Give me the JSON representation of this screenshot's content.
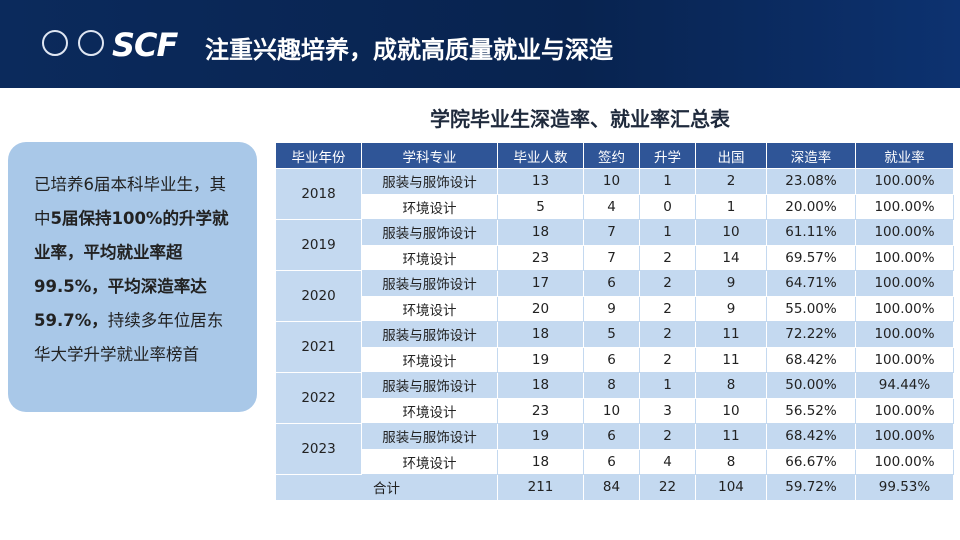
{
  "header": {
    "logo": "SCF",
    "title": "注重兴趣培养，成就高质量就业与深造"
  },
  "summary": [
    {
      "text": "已培养6届本科毕业生，其中",
      "bold": false
    },
    {
      "text": "5届保持100%的升学就业率，平均就业率超99.5%，平均深造率达59.7%，",
      "bold": true
    },
    {
      "text": "持续多年位居东华大学升学就业率榜首",
      "bold": false
    }
  ],
  "table": {
    "title": "学院毕业生深造率、就业率汇总表",
    "headers": [
      "毕业年份",
      "学科专业",
      "毕业人数",
      "签约",
      "升学",
      "出国",
      "深造率",
      "就业率"
    ],
    "groups": [
      {
        "year": "2018",
        "rows": [
          [
            "服装与服饰设计",
            "13",
            "10",
            "1",
            "2",
            "23.08%",
            "100.00%"
          ],
          [
            "环境设计",
            "5",
            "4",
            "0",
            "1",
            "20.00%",
            "100.00%"
          ]
        ]
      },
      {
        "year": "2019",
        "rows": [
          [
            "服装与服饰设计",
            "18",
            "7",
            "1",
            "10",
            "61.11%",
            "100.00%"
          ],
          [
            "环境设计",
            "23",
            "7",
            "2",
            "14",
            "69.57%",
            "100.00%"
          ]
        ]
      },
      {
        "year": "2020",
        "rows": [
          [
            "服装与服饰设计",
            "17",
            "6",
            "2",
            "9",
            "64.71%",
            "100.00%"
          ],
          [
            "环境设计",
            "20",
            "9",
            "2",
            "9",
            "55.00%",
            "100.00%"
          ]
        ]
      },
      {
        "year": "2021",
        "rows": [
          [
            "服装与服饰设计",
            "18",
            "5",
            "2",
            "11",
            "72.22%",
            "100.00%"
          ],
          [
            "环境设计",
            "19",
            "6",
            "2",
            "11",
            "68.42%",
            "100.00%"
          ]
        ]
      },
      {
        "year": "2022",
        "rows": [
          [
            "服装与服饰设计",
            "18",
            "8",
            "1",
            "8",
            "50.00%",
            "94.44%"
          ],
          [
            "环境设计",
            "23",
            "10",
            "3",
            "10",
            "56.52%",
            "100.00%"
          ]
        ]
      },
      {
        "year": "2023",
        "rows": [
          [
            "服装与服饰设计",
            "19",
            "6",
            "2",
            "11",
            "68.42%",
            "100.00%"
          ],
          [
            "环境设计",
            "18",
            "6",
            "4",
            "8",
            "66.67%",
            "100.00%"
          ]
        ]
      }
    ],
    "total": {
      "label": "合计",
      "values": [
        "211",
        "84",
        "22",
        "104",
        "59.72%",
        "99.53%"
      ]
    }
  }
}
